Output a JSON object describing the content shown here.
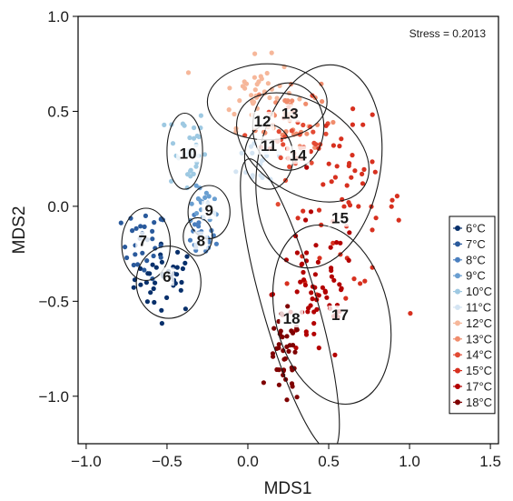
{
  "chart_data": {
    "type": "scatter",
    "title": "",
    "xlabel": "MDS1",
    "ylabel": "MDS2",
    "xlim": [
      -1.05,
      1.55
    ],
    "ylim": [
      -1.25,
      1.0
    ],
    "xticks": [
      -1.0,
      -0.5,
      0.0,
      0.5,
      1.0,
      1.5
    ],
    "xtick_labels": [
      "−1.0",
      "−0.5",
      "0.0",
      "0.5",
      "1.0",
      "1.5"
    ],
    "yticks": [
      -1.0,
      -0.5,
      0.0,
      0.5,
      1.0
    ],
    "ytick_labels": [
      "−1.0",
      "−0.5",
      "0.0",
      "0.5",
      "1.0"
    ],
    "grid": false,
    "legend_position": "bottom-right",
    "annotation": "Stress = 0.2013",
    "series": [
      {
        "name": "6°C",
        "color": "#08306b",
        "cx": -0.5,
        "cy": -0.38,
        "sx": 0.1,
        "sy": 0.09,
        "n": 38,
        "label": "6",
        "label_x": -0.5,
        "label_y": -0.37,
        "ellipse": {
          "cx": -0.49,
          "cy": -0.4,
          "rx": 0.2,
          "ry": 0.19,
          "angle": 0
        }
      },
      {
        "name": "7°C",
        "color": "#2a5a9c",
        "cx": -0.64,
        "cy": -0.2,
        "sx": 0.07,
        "sy": 0.09,
        "n": 30,
        "label": "7",
        "label_x": -0.65,
        "label_y": -0.18,
        "ellipse": {
          "cx": -0.63,
          "cy": -0.2,
          "rx": 0.15,
          "ry": 0.19,
          "angle": 0
        }
      },
      {
        "name": "8°C",
        "color": "#4a7fbf",
        "cx": -0.3,
        "cy": -0.17,
        "sx": 0.05,
        "sy": 0.05,
        "n": 22,
        "label": "8",
        "label_x": -0.29,
        "label_y": -0.18,
        "ellipse": {
          "cx": -0.31,
          "cy": -0.16,
          "rx": 0.09,
          "ry": 0.1,
          "angle": 0
        }
      },
      {
        "name": "9°C",
        "color": "#6a9fd1",
        "cx": -0.26,
        "cy": 0.0,
        "sx": 0.05,
        "sy": 0.05,
        "n": 20,
        "label": "9",
        "label_x": -0.24,
        "label_y": -0.02,
        "ellipse": {
          "cx": -0.24,
          "cy": -0.03,
          "rx": 0.13,
          "ry": 0.14,
          "angle": 0
        }
      },
      {
        "name": "10°C",
        "color": "#9ec9e2",
        "cx": -0.38,
        "cy": 0.3,
        "sx": 0.06,
        "sy": 0.12,
        "n": 32,
        "label": "10",
        "label_x": -0.37,
        "label_y": 0.28,
        "ellipse": {
          "cx": -0.39,
          "cy": 0.29,
          "rx": 0.11,
          "ry": 0.2,
          "angle": 0
        }
      },
      {
        "name": "11°C",
        "color": "#d4e4f2",
        "cx": 0.1,
        "cy": 0.25,
        "sx": 0.08,
        "sy": 0.08,
        "n": 20,
        "label": "11",
        "label_x": 0.13,
        "label_y": 0.32,
        "ellipse": {
          "cx": 0.13,
          "cy": 0.26,
          "rx": 0.15,
          "ry": 0.17,
          "angle": 0
        }
      },
      {
        "name": "12°C",
        "color": "#f6b79a",
        "cx": 0.05,
        "cy": 0.6,
        "sx": 0.12,
        "sy": 0.09,
        "n": 42,
        "label": "12",
        "label_x": 0.09,
        "label_y": 0.45,
        "ellipse": {
          "cx": 0.12,
          "cy": 0.55,
          "rx": 0.37,
          "ry": 0.2,
          "angle": 0
        }
      },
      {
        "name": "13°C",
        "color": "#f08c6c",
        "cx": 0.25,
        "cy": 0.47,
        "sx": 0.1,
        "sy": 0.1,
        "n": 38,
        "label": "13",
        "label_x": 0.26,
        "label_y": 0.49,
        "ellipse": {
          "cx": 0.25,
          "cy": 0.42,
          "rx": 0.22,
          "ry": 0.23,
          "angle": 0
        }
      },
      {
        "name": "14°C",
        "color": "#e34a33",
        "cx": 0.3,
        "cy": 0.35,
        "sx": 0.11,
        "sy": 0.1,
        "n": 36,
        "label": "14",
        "label_x": 0.31,
        "label_y": 0.27,
        "ellipse": {
          "cx": 0.34,
          "cy": 0.31,
          "rx": 0.45,
          "ry": 0.24,
          "angle": 32
        }
      },
      {
        "name": "15°C",
        "color": "#d7301f",
        "cx": 0.6,
        "cy": 0.0,
        "sx": 0.18,
        "sy": 0.22,
        "n": 60,
        "label": "15",
        "label_x": 0.57,
        "label_y": -0.06,
        "ellipse": {
          "cx": 0.44,
          "cy": 0.21,
          "rx": 0.38,
          "ry": 0.54,
          "angle": 10
        }
      },
      {
        "name": "17°C",
        "color": "#b30000",
        "cx": 0.42,
        "cy": -0.45,
        "sx": 0.13,
        "sy": 0.2,
        "n": 65,
        "label": "17",
        "label_x": 0.57,
        "label_y": -0.57,
        "ellipse": {
          "cx": 0.52,
          "cy": -0.57,
          "rx": 0.35,
          "ry": 0.48,
          "angle": -14
        }
      },
      {
        "name": "18°C",
        "color": "#7f0000",
        "cx": 0.23,
        "cy": -0.82,
        "sx": 0.05,
        "sy": 0.12,
        "n": 40,
        "label": "18",
        "label_x": 0.27,
        "label_y": -0.59,
        "ellipse": {
          "cx": 0.26,
          "cy": -0.52,
          "rx": 0.17,
          "ry": 0.8,
          "angle": -16
        }
      }
    ]
  }
}
